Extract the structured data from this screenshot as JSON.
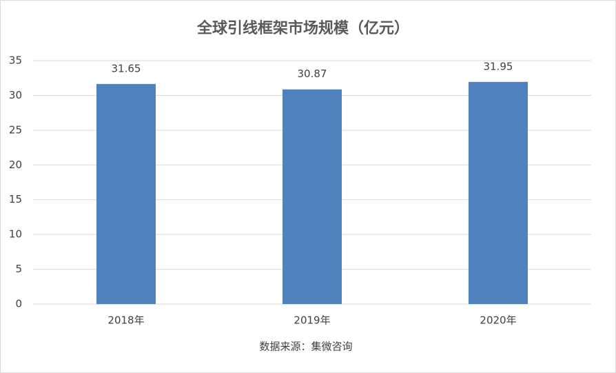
{
  "chart_data": {
    "type": "bar",
    "title": "全球引线框架市场规模（亿元）",
    "categories": [
      "2018年",
      "2019年",
      "2020年"
    ],
    "values": [
      31.65,
      30.87,
      31.95
    ],
    "color": "#4f81bd",
    "ylim": [
      0,
      35
    ],
    "yticks": [
      0,
      5,
      10,
      15,
      20,
      25,
      30,
      35
    ],
    "grid": true,
    "note": "数据来源：集微咨询"
  }
}
